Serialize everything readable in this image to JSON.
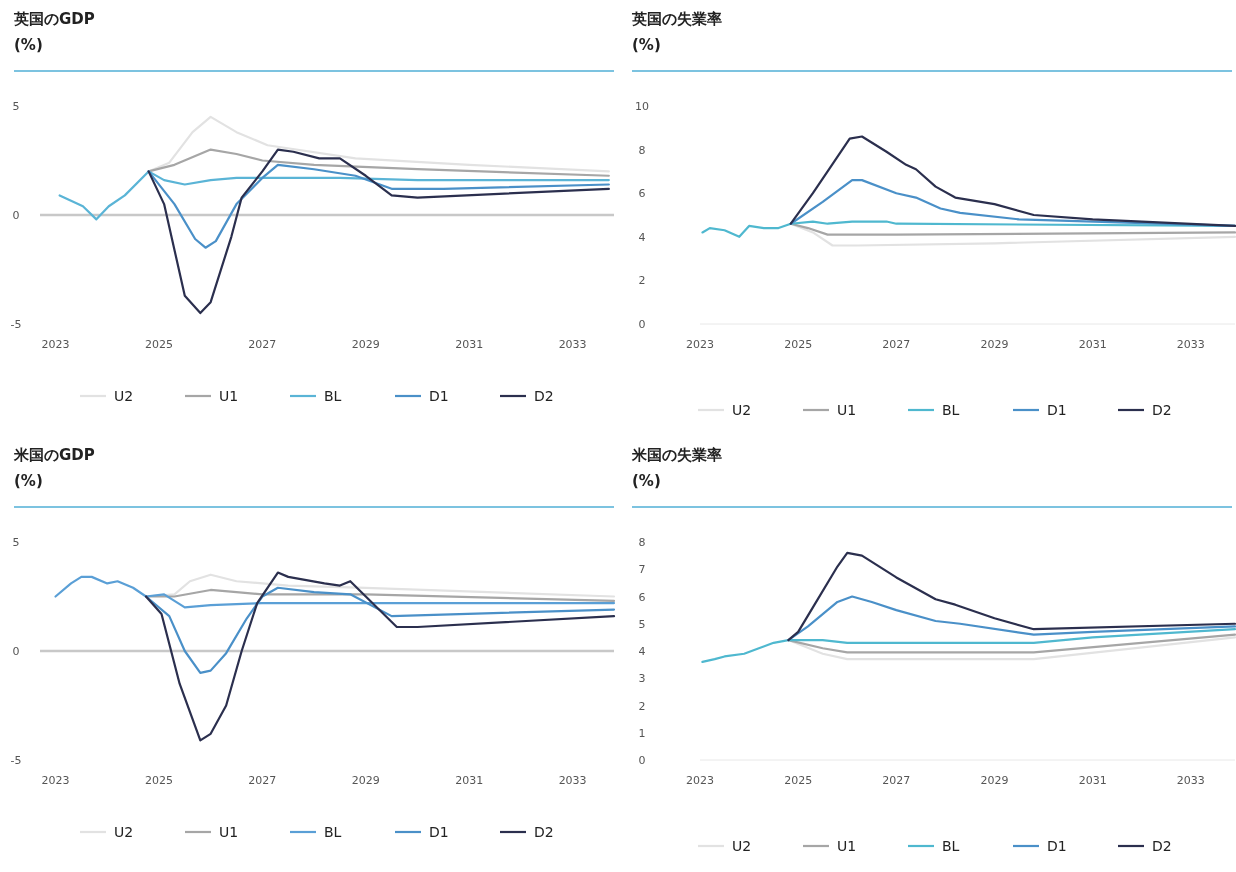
{
  "chart_data": [
    {
      "type": "line",
      "title": "英国のGDP",
      "ylabel": "(%)",
      "xlim": [
        2022.7,
        2033.8
      ],
      "ylim": [
        -5,
        5
      ],
      "xticks": [
        2023,
        2025,
        2027,
        2029,
        2031,
        2033
      ],
      "yticks": [
        -5,
        0,
        5
      ],
      "legend": "bottom",
      "ref_lines": [
        {
          "axis": "y",
          "value": 0,
          "color": "#c8c8c8"
        }
      ],
      "series": [
        {
          "name": "U2",
          "color": "#e2e2e2",
          "x": [
            2024.8,
            2025.2,
            2025.65,
            2026.0,
            2026.5,
            2027.1,
            2028.8,
            2031,
            2033.7
          ],
          "values": [
            2.0,
            2.4,
            3.8,
            4.5,
            3.8,
            3.2,
            2.6,
            2.3,
            2.0
          ]
        },
        {
          "name": "U1",
          "color": "#a6a6a6",
          "x": [
            2024.8,
            2025.3,
            2026.0,
            2026.5,
            2027,
            2028,
            2030,
            2033.7
          ],
          "values": [
            2.0,
            2.3,
            3.0,
            2.8,
            2.5,
            2.3,
            2.1,
            1.8
          ]
        },
        {
          "name": "BL",
          "color": "#5ab4d6",
          "x": [
            2023.08,
            2023.53,
            2023.79,
            2024.03,
            2024.34,
            2024.8,
            2025.1,
            2025.5,
            2026,
            2026.5,
            2027.5,
            2028.5,
            2030,
            2033.7
          ],
          "values": [
            0.9,
            0.4,
            -0.2,
            0.4,
            0.9,
            2.0,
            1.6,
            1.4,
            1.6,
            1.7,
            1.7,
            1.7,
            1.6,
            1.6
          ]
        },
        {
          "name": "D1",
          "color": "#4a90c8",
          "x": [
            2024.8,
            2025.3,
            2025.7,
            2025.9,
            2026.1,
            2026.5,
            2027,
            2027.3,
            2028,
            2028.8,
            2029.5,
            2030.5,
            2033.7
          ],
          "values": [
            2.0,
            0.5,
            -1.1,
            -1.5,
            -1.2,
            0.5,
            1.7,
            2.3,
            2.1,
            1.8,
            1.2,
            1.2,
            1.4
          ]
        },
        {
          "name": "D2",
          "color": "#2b2f4e",
          "x": [
            2024.8,
            2025.1,
            2025.5,
            2025.8,
            2026.0,
            2026.4,
            2026.6,
            2027.0,
            2027.3,
            2027.6,
            2028.1,
            2028.5,
            2029.0,
            2029.5,
            2030,
            2033.7
          ],
          "values": [
            2.0,
            0.5,
            -3.7,
            -4.5,
            -4.0,
            -1.0,
            0.8,
            2.0,
            3.0,
            2.9,
            2.6,
            2.6,
            1.8,
            0.9,
            0.8,
            1.2
          ]
        }
      ]
    },
    {
      "type": "line",
      "title": "英国の失業率",
      "ylabel": "(%)",
      "xlim": [
        2023,
        2033.9
      ],
      "ylim": [
        0,
        10
      ],
      "xticks": [
        2023,
        2025,
        2027,
        2029,
        2031,
        2033
      ],
      "yticks": [
        0,
        2,
        4,
        6,
        8,
        10
      ],
      "legend": "bottom",
      "series": [
        {
          "name": "U2",
          "color": "#e2e2e2",
          "x": [
            2024.85,
            2025.3,
            2025.7,
            2026.2,
            2029,
            2033.9
          ],
          "values": [
            4.6,
            4.2,
            3.6,
            3.6,
            3.7,
            4.0
          ]
        },
        {
          "name": "U1",
          "color": "#a6a6a6",
          "x": [
            2024.85,
            2025.2,
            2025.6,
            2026,
            2027,
            2033.9
          ],
          "values": [
            4.6,
            4.4,
            4.1,
            4.1,
            4.1,
            4.2
          ]
        },
        {
          "name": "BL",
          "color": "#4fb8cf",
          "x": [
            2023.05,
            2023.2,
            2023.5,
            2023.8,
            2024.0,
            2024.3,
            2024.6,
            2024.85,
            2025.3,
            2025.6,
            2026.1,
            2026.8,
            2027,
            2033.9
          ],
          "values": [
            4.2,
            4.4,
            4.3,
            4.0,
            4.5,
            4.4,
            4.4,
            4.6,
            4.7,
            4.6,
            4.7,
            4.7,
            4.6,
            4.5
          ]
        },
        {
          "name": "D1",
          "color": "#4a90c8",
          "x": [
            2024.85,
            2025.5,
            2026.1,
            2026.3,
            2027,
            2027.4,
            2027.9,
            2028.3,
            2029.5,
            2033.9
          ],
          "values": [
            4.6,
            5.6,
            6.6,
            6.6,
            6.0,
            5.8,
            5.3,
            5.1,
            4.8,
            4.5
          ]
        },
        {
          "name": "D2",
          "color": "#2b2f4e",
          "x": [
            2024.85,
            2025.3,
            2025.6,
            2026.05,
            2026.3,
            2026.8,
            2027.2,
            2027.4,
            2027.8,
            2028.2,
            2029,
            2029.8,
            2031,
            2033.9
          ],
          "values": [
            4.6,
            6.0,
            7.0,
            8.5,
            8.6,
            7.9,
            7.3,
            7.1,
            6.3,
            5.8,
            5.5,
            5.0,
            4.8,
            4.5
          ]
        }
      ]
    },
    {
      "type": "line",
      "title": "米国のGDP",
      "ylabel": "(%)",
      "xlim": [
        2022.7,
        2033.8
      ],
      "ylim": [
        -5,
        5
      ],
      "xticks": [
        2023,
        2025,
        2027,
        2029,
        2031,
        2033
      ],
      "yticks": [
        -5,
        0,
        5
      ],
      "legend": "bottom",
      "ref_lines": [
        {
          "axis": "y",
          "value": 0,
          "color": "#c8c8c8"
        }
      ],
      "series": [
        {
          "name": "U2",
          "color": "#e2e2e2",
          "x": [
            2024.75,
            2025.3,
            2025.6,
            2026,
            2026.5,
            2027.5,
            2029,
            2033.8
          ],
          "values": [
            2.5,
            2.6,
            3.2,
            3.5,
            3.2,
            3.0,
            2.9,
            2.5
          ]
        },
        {
          "name": "U1",
          "color": "#a6a6a6",
          "x": [
            2024.75,
            2025.3,
            2026,
            2026.5,
            2027,
            2029,
            2033.8
          ],
          "values": [
            2.5,
            2.5,
            2.8,
            2.7,
            2.6,
            2.6,
            2.3
          ]
        },
        {
          "name": "BL",
          "color": "#5a9fd6",
          "x": [
            2023.0,
            2023.3,
            2023.5,
            2023.7,
            2024.0,
            2024.2,
            2024.5,
            2024.75,
            2025.1,
            2025.5,
            2026,
            2027,
            2029,
            2033.8
          ],
          "values": [
            2.5,
            3.1,
            3.4,
            3.4,
            3.1,
            3.2,
            2.9,
            2.5,
            2.6,
            2.0,
            2.1,
            2.2,
            2.2,
            2.2
          ]
        },
        {
          "name": "D1",
          "color": "#4a90c8",
          "x": [
            2024.75,
            2025.2,
            2025.5,
            2025.8,
            2026,
            2026.3,
            2026.7,
            2027.0,
            2027.3,
            2028,
            2028.7,
            2029.5,
            2033.8
          ],
          "values": [
            2.5,
            1.6,
            0,
            -1.0,
            -0.9,
            -0.1,
            1.5,
            2.5,
            2.9,
            2.7,
            2.6,
            1.6,
            1.9
          ]
        },
        {
          "name": "D2",
          "color": "#2b2f4e",
          "x": [
            2024.75,
            2025.05,
            2025.4,
            2025.8,
            2026,
            2026.3,
            2026.6,
            2026.9,
            2027.3,
            2027.5,
            2028.2,
            2028.5,
            2028.7,
            2029.0,
            2029.6,
            2030,
            2033.8
          ],
          "values": [
            2.5,
            1.7,
            -1.5,
            -4.1,
            -3.8,
            -2.5,
            0.0,
            2.2,
            3.6,
            3.4,
            3.1,
            3.0,
            3.2,
            2.5,
            1.1,
            1.1,
            1.6
          ]
        }
      ]
    },
    {
      "type": "line",
      "title": "米国の失業率",
      "ylabel": "(%)",
      "xlim": [
        2023,
        2033.9
      ],
      "ylim": [
        0,
        8
      ],
      "xticks": [
        2023,
        2025,
        2027,
        2029,
        2031,
        2033
      ],
      "yticks": [
        0,
        1,
        2,
        3,
        4,
        5,
        6,
        7,
        8
      ],
      "legend": "bottom",
      "series": [
        {
          "name": "U2",
          "color": "#e2e2e2",
          "x": [
            2024.8,
            2025.5,
            2026,
            2029.8,
            2033.9
          ],
          "values": [
            4.4,
            3.9,
            3.7,
            3.7,
            4.5
          ]
        },
        {
          "name": "U1",
          "color": "#a6a6a6",
          "x": [
            2024.8,
            2025.5,
            2026,
            2029.8,
            2033.9
          ],
          "values": [
            4.4,
            4.1,
            3.95,
            3.95,
            4.6
          ]
        },
        {
          "name": "BL",
          "color": "#4fb8cf",
          "x": [
            2023.05,
            2023.3,
            2023.5,
            2023.9,
            2024.2,
            2024.5,
            2024.8,
            2025.5,
            2026,
            2029.8,
            2031,
            2033.9
          ],
          "values": [
            3.6,
            3.7,
            3.8,
            3.9,
            4.1,
            4.3,
            4.4,
            4.4,
            4.3,
            4.3,
            4.5,
            4.8
          ]
        },
        {
          "name": "D1",
          "color": "#4a90c8",
          "x": [
            2024.8,
            2025.2,
            2025.8,
            2026.1,
            2026.5,
            2027,
            2027.8,
            2028.3,
            2029.8,
            2031,
            2033.9
          ],
          "values": [
            4.4,
            4.9,
            5.8,
            6.0,
            5.8,
            5.5,
            5.1,
            5.0,
            4.6,
            4.7,
            4.9
          ]
        },
        {
          "name": "D2",
          "color": "#2b2f4e",
          "x": [
            2024.8,
            2025.0,
            2025.3,
            2025.8,
            2026.0,
            2026.3,
            2027,
            2027.8,
            2028.2,
            2029,
            2029.8,
            2033.9
          ],
          "values": [
            4.4,
            4.7,
            5.6,
            7.1,
            7.6,
            7.5,
            6.7,
            5.9,
            5.7,
            5.2,
            4.8,
            5.0
          ]
        }
      ]
    }
  ]
}
